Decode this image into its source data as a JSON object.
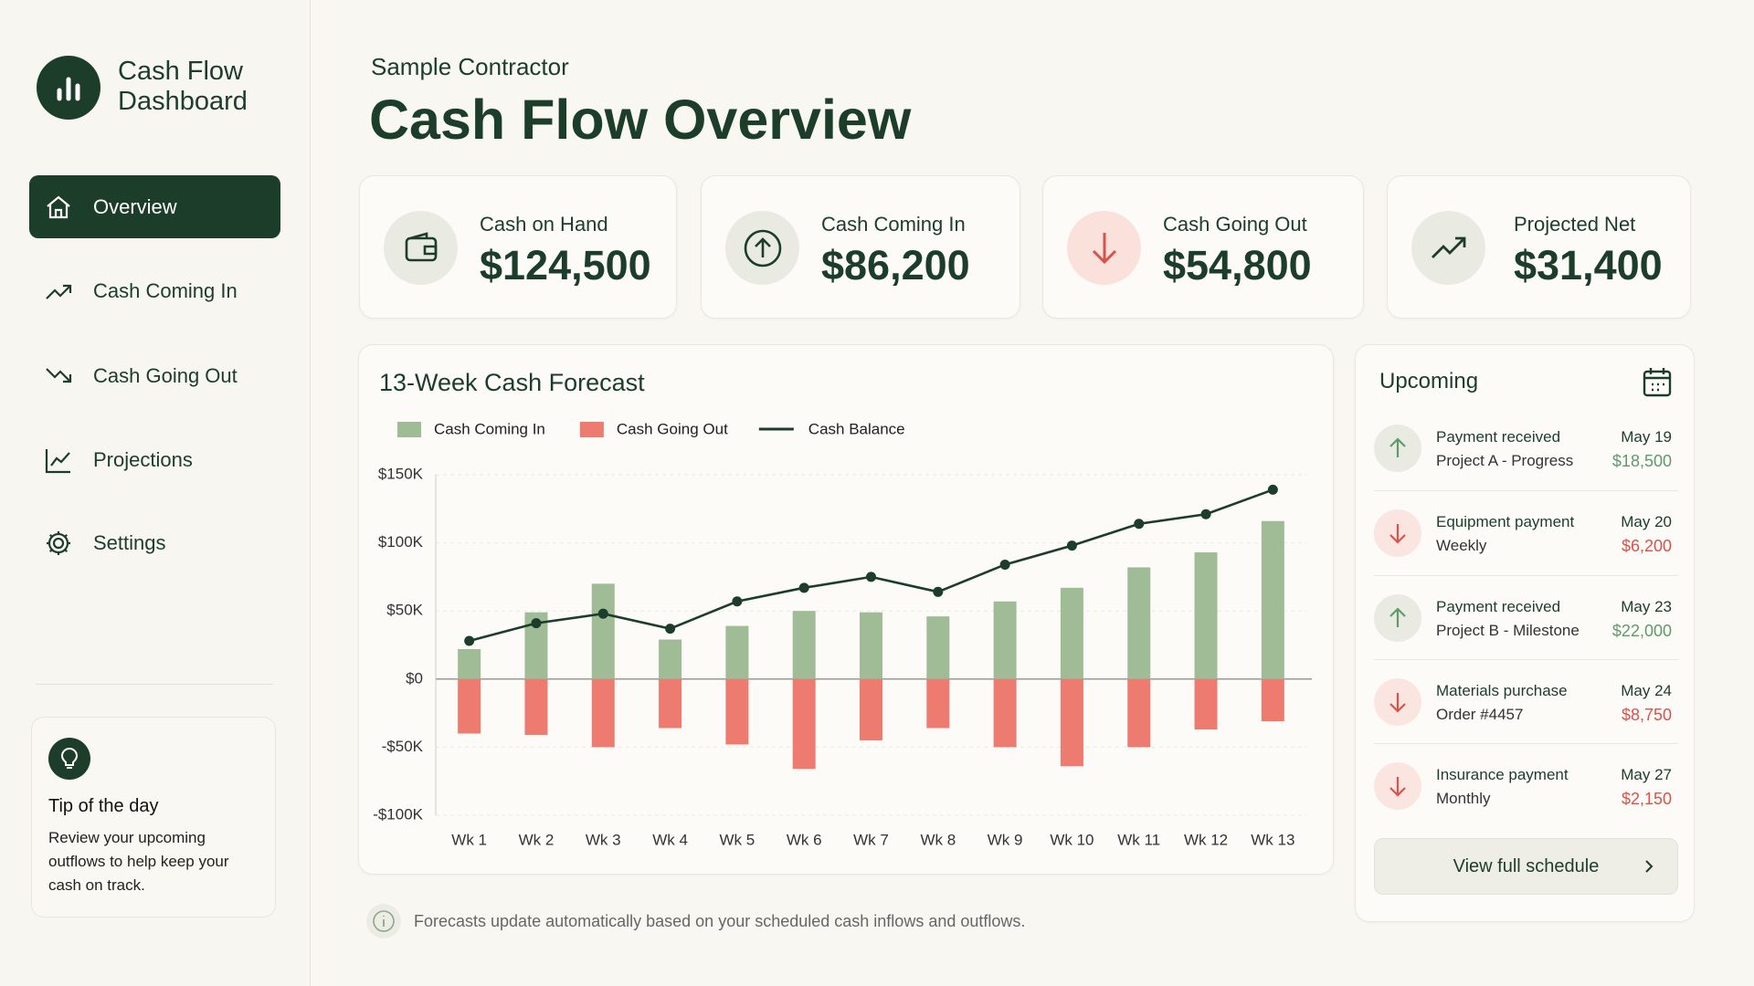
{
  "sidebar": {
    "brand": [
      "Cash Flow",
      "Dashboard"
    ],
    "nav": [
      "Overview",
      "Cash Coming In",
      "Cash Going Out",
      "Projections",
      "Settings"
    ],
    "tip": {
      "title": "Tip of the day",
      "text": "Review your upcoming outflows to help keep your cash on track."
    }
  },
  "header": {
    "subtitle": "Sample Contractor",
    "title": "Cash Flow Overview"
  },
  "kpis": [
    {
      "label": "Cash on Hand",
      "value": "$124,500"
    },
    {
      "label": "Cash Coming In",
      "value": "$86,200"
    },
    {
      "label": "Cash Going Out",
      "value": "$54,800"
    },
    {
      "label": "Projected Net",
      "value": "$31,400"
    }
  ],
  "chart_data": {
    "type": "bar",
    "title": "13-Week Cash Forecast",
    "categories": [
      "Wk 1",
      "Wk 2",
      "Wk 3",
      "Wk 4",
      "Wk 5",
      "Wk 6",
      "Wk 7",
      "Wk 8",
      "Wk 9",
      "Wk 10",
      "Wk 11",
      "Wk 12",
      "Wk 13"
    ],
    "series": [
      {
        "name": "Cash Coming In",
        "color": "#9fbc97",
        "values": [
          22,
          49,
          70,
          29,
          39,
          50,
          49,
          46,
          57,
          67,
          82,
          93,
          116
        ]
      },
      {
        "name": "Cash Going Out",
        "color": "#ee7b6f",
        "values": [
          -40,
          -41,
          -50,
          -36,
          -48,
          -66,
          -45,
          -36,
          -50,
          -64,
          -50,
          -37,
          -31
        ]
      },
      {
        "name": "Cash Balance",
        "color": "#1d3d2b",
        "type": "line",
        "values": [
          28,
          41,
          48,
          37,
          57,
          67,
          75,
          64,
          84,
          98,
          114,
          121,
          139
        ]
      }
    ],
    "ylim": [
      -100,
      150
    ],
    "yticks": [
      {
        "value": -100,
        "label": "-$100K"
      },
      {
        "value": -50,
        "label": "-$50K"
      },
      {
        "value": 0,
        "label": "$0"
      },
      {
        "value": 50,
        "label": "$50K"
      },
      {
        "value": 100,
        "label": "$100K"
      },
      {
        "value": 150,
        "label": "$150K"
      }
    ],
    "grid": true
  },
  "upcoming": {
    "title": "Upcoming",
    "items": [
      {
        "title": "Payment received",
        "detail": "Project A - Progress",
        "date": "May 19",
        "amount": "$18,500"
      },
      {
        "title": "Equipment payment",
        "detail": "Weekly",
        "date": "May 20",
        "amount": "$6,200"
      },
      {
        "title": "Payment received",
        "detail": "Project B - Milestone",
        "date": "May 23",
        "amount": "$22,000"
      },
      {
        "title": "Materials purchase",
        "detail": "Order #4457",
        "date": "May 24",
        "amount": "$8,750"
      },
      {
        "title": "Insurance payment",
        "detail": "Monthly",
        "date": "May 27",
        "amount": "$2,150"
      }
    ],
    "button": "View full schedule"
  },
  "note": "Forecasts update automatically based on your scheduled cash inflows and outflows."
}
